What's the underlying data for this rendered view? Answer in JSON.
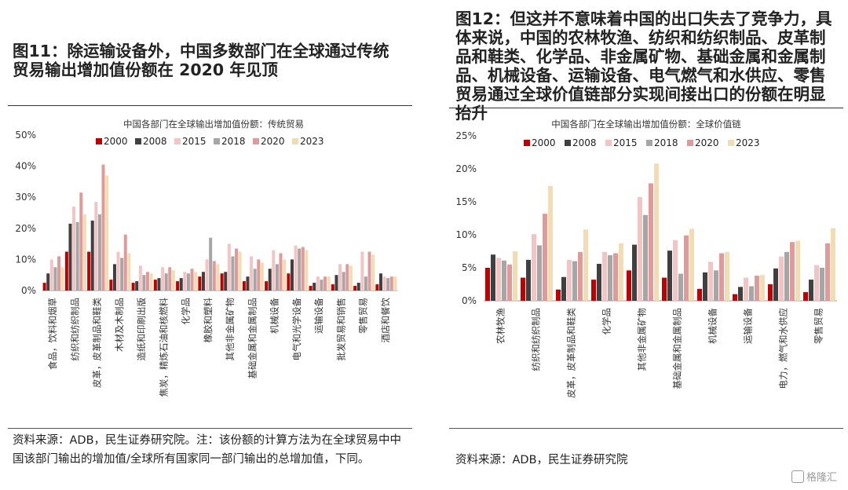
{
  "left_panel": {
    "heading": "图11：除运输设备外，中国多数部门在全球通过传统贸易输出增加值份额在 2020 年见顶",
    "source": "资料来源：ADB，民生证券研究院。注：该份额的计算方法为在全球贸易中中国该部门输出的增加值/全球所有国家同一部门输出的总增加值，下同。"
  },
  "right_panel": {
    "heading": "图12：但这并不意味着中国的出口失去了竞争力，具体来说，中国的农林牧渔、纺织和纺织制品、皮革制品和鞋类、化学品、非金属矿物、基础金属和金属制品、机械设备、运输设备、电气燃气和水供应、零售贸易通过全球价值链部分实现间接出口的份额在明显抬升",
    "source": "资料来源：ADB，民生证券研究院"
  },
  "watermark": "格隆汇",
  "colors": {
    "2000": "#c00000",
    "2008": "#404040",
    "2015": "#f2c4c4",
    "2018": "#a6a6a6",
    "2020": "#e09a9a",
    "2023": "#f2dcb4"
  },
  "chart_data": [
    {
      "type": "bar",
      "title": "中国各部门在全球输出增加值份额：传统贸易",
      "y_unit": "%",
      "ylim": [
        0,
        50
      ],
      "yticks": [
        "0%",
        "10%",
        "20%",
        "30%",
        "40%",
        "50%"
      ],
      "legend_position": "top",
      "categories": [
        "食品，饮料和烟草",
        "纺织和纺织制品",
        "皮革，皮革制品和鞋类",
        "木材及木制品",
        "造纸和印刷出版",
        "焦炭，精炼石油和核燃料",
        "化学品",
        "橡胶和塑料",
        "其他非金属矿物",
        "基础金属和金属制品",
        "机械设备",
        "电气和光学设备",
        "运输设备",
        "批发贸易和销售",
        "零售贸易",
        "酒店和餐饮"
      ],
      "series": [
        {
          "name": "2000",
          "values": [
            2.5,
            12.5,
            12.5,
            3.5,
            2.5,
            3.5,
            3.0,
            4.5,
            5.5,
            3.0,
            3.0,
            5.5,
            1.5,
            2.0,
            1.5,
            2.0
          ]
        },
        {
          "name": "2008",
          "values": [
            5.5,
            21.5,
            22.5,
            8.5,
            3.0,
            4.0,
            4.0,
            6.0,
            6.0,
            4.5,
            7.0,
            10.0,
            2.5,
            5.0,
            2.5,
            5.5
          ]
        },
        {
          "name": "2015",
          "values": [
            10.0,
            27.0,
            28.5,
            12.5,
            8.0,
            7.5,
            6.0,
            10.0,
            15.0,
            11.0,
            13.0,
            14.5,
            4.5,
            8.5,
            12.5,
            4.5
          ]
        },
        {
          "name": "2018",
          "values": [
            7.5,
            22.0,
            24.5,
            10.5,
            5.0,
            5.5,
            5.5,
            17.0,
            11.0,
            7.0,
            8.5,
            13.5,
            3.5,
            6.0,
            4.5,
            4.0
          ]
        },
        {
          "name": "2020",
          "values": [
            11.0,
            31.5,
            40.5,
            18.0,
            6.0,
            7.5,
            7.0,
            9.5,
            13.5,
            10.0,
            12.0,
            14.0,
            4.5,
            8.5,
            12.5,
            4.5
          ]
        },
        {
          "name": "2023",
          "values": [
            7.5,
            24.5,
            37.0,
            12.0,
            5.5,
            6.5,
            6.0,
            8.5,
            12.5,
            9.0,
            10.0,
            13.0,
            4.5,
            8.0,
            11.5,
            4.5
          ]
        }
      ]
    },
    {
      "type": "bar",
      "title": "中国各部门在全球输出增加值份额：全球价值链",
      "y_unit": "%",
      "ylim": [
        0,
        25
      ],
      "yticks": [
        "0%",
        "5%",
        "10%",
        "15%",
        "20%",
        "25%"
      ],
      "legend_position": "top",
      "categories": [
        "农林牧渔",
        "纺织和纺织制品",
        "皮革，皮革制品和鞋类",
        "化学品",
        "其他非金属矿物",
        "基础金属和金属制品",
        "机械设备",
        "运输设备",
        "电力，燃气和水供应",
        "零售贸易"
      ],
      "series": [
        {
          "name": "2000",
          "values": [
            5.0,
            3.5,
            1.7,
            3.2,
            4.6,
            3.5,
            1.8,
            1.0,
            2.5,
            1.3
          ]
        },
        {
          "name": "2008",
          "values": [
            7.0,
            6.2,
            3.6,
            5.6,
            8.5,
            7.6,
            4.3,
            2.1,
            4.9,
            3.2
          ]
        },
        {
          "name": "2015",
          "values": [
            6.5,
            10.1,
            6.2,
            7.4,
            15.7,
            9.2,
            5.9,
            3.5,
            6.7,
            5.4
          ]
        },
        {
          "name": "2018",
          "values": [
            6.1,
            8.4,
            6.0,
            6.9,
            13.0,
            4.1,
            4.6,
            2.2,
            7.4,
            5.0
          ]
        },
        {
          "name": "2020",
          "values": [
            5.5,
            13.2,
            7.4,
            7.2,
            17.8,
            9.9,
            7.2,
            3.8,
            8.9,
            8.7
          ]
        },
        {
          "name": "2023",
          "values": [
            7.5,
            17.4,
            10.8,
            8.7,
            20.8,
            10.9,
            7.4,
            3.9,
            9.1,
            11.0
          ]
        }
      ]
    }
  ]
}
